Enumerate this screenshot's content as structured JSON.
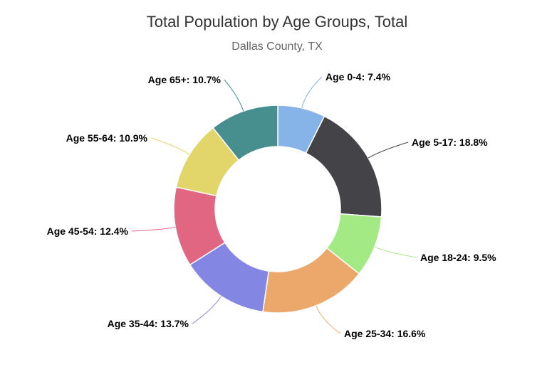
{
  "chart_data": {
    "type": "pie",
    "variant": "donut",
    "title": "Total Population by Age Groups, Total",
    "subtitle": "Dallas County, TX",
    "unit": "%",
    "slices": [
      {
        "label": "Age 0-4",
        "value": 7.4,
        "color": "#86b3e8",
        "display": "Age 0-4: 7.4%"
      },
      {
        "label": "Age 5-17",
        "value": 18.8,
        "color": "#434348",
        "display": "Age 5-17: 18.8%"
      },
      {
        "label": "Age 18-24",
        "value": 9.5,
        "color": "#a3ea85",
        "display": "Age 18-24: 9.5%"
      },
      {
        "label": "Age 25-34",
        "value": 16.6,
        "color": "#eca76a",
        "display": "Age 25-34: 16.6%"
      },
      {
        "label": "Age 35-44",
        "value": 13.7,
        "color": "#8486e3",
        "display": "Age 35-44: 13.7%"
      },
      {
        "label": "Age 45-54",
        "value": 12.4,
        "color": "#e06681",
        "display": "Age 45-54: 12.4%"
      },
      {
        "label": "Age 55-64",
        "value": 10.9,
        "color": "#e2d56a",
        "display": "Age 55-64: 10.9%"
      },
      {
        "label": "Age 65+",
        "value": 10.7,
        "color": "#478f8e",
        "display": "Age 65+: 10.7%"
      }
    ]
  }
}
